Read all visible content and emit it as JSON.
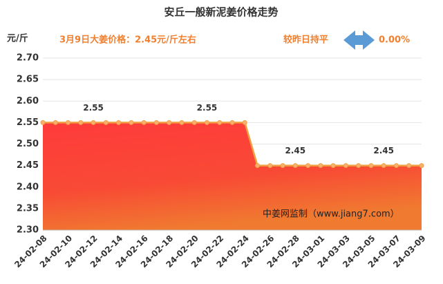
{
  "chart_data": {
    "type": "area",
    "title": "安丘一般新泥姜价格走势",
    "y_label": "元/斤",
    "annotations": [
      "3月9日大姜价格：2.45元/斤左右",
      "较昨日持平",
      "0.00%",
      "中姜网监制（www.jiang7.com）"
    ],
    "categories": [
      "24-02-08",
      null,
      "24-02-10",
      null,
      "24-02-12",
      null,
      "24-02-14",
      null,
      "24-02-16",
      null,
      "24-02-18",
      null,
      "24-02-20",
      null,
      "24-02-22",
      null,
      "24-02-24",
      null,
      "24-02-26",
      null,
      "24-02-28",
      null,
      "24-03-01",
      null,
      "24-03-03",
      null,
      "24-03-05",
      null,
      "24-03-07",
      null,
      "24-03-09"
    ],
    "values": [
      2.55,
      2.55,
      2.55,
      2.55,
      2.55,
      2.55,
      2.55,
      2.55,
      2.55,
      2.55,
      2.55,
      2.55,
      2.55,
      2.55,
      2.55,
      2.55,
      2.55,
      2.45,
      2.45,
      2.45,
      2.45,
      2.45,
      2.45,
      2.45,
      2.45,
      2.45,
      2.45,
      2.45,
      2.45,
      2.45,
      2.45
    ],
    "value_labels": [
      null,
      null,
      null,
      null,
      "2.55",
      null,
      null,
      null,
      null,
      null,
      null,
      null,
      null,
      "2.55",
      null,
      null,
      null,
      null,
      null,
      null,
      "2.45",
      null,
      null,
      null,
      null,
      null,
      null,
      "2.45",
      null,
      null,
      null
    ],
    "color": "#f0a040",
    "ylim": [
      2.3,
      2.7
    ],
    "yticks": [
      {
        "value": 2.3,
        "label": "2.30"
      },
      {
        "value": 2.35,
        "label": "2.35"
      },
      {
        "value": 2.4,
        "label": "2.40"
      },
      {
        "value": 2.45,
        "label": "2.45"
      },
      {
        "value": 2.5,
        "label": "2.50"
      },
      {
        "value": 2.55,
        "label": "2.55"
      },
      {
        "value": 2.6,
        "label": "2.60"
      },
      {
        "value": 2.65,
        "label": "2.65"
      },
      {
        "value": 2.7,
        "label": "2.70"
      }
    ],
    "grid": true
  }
}
